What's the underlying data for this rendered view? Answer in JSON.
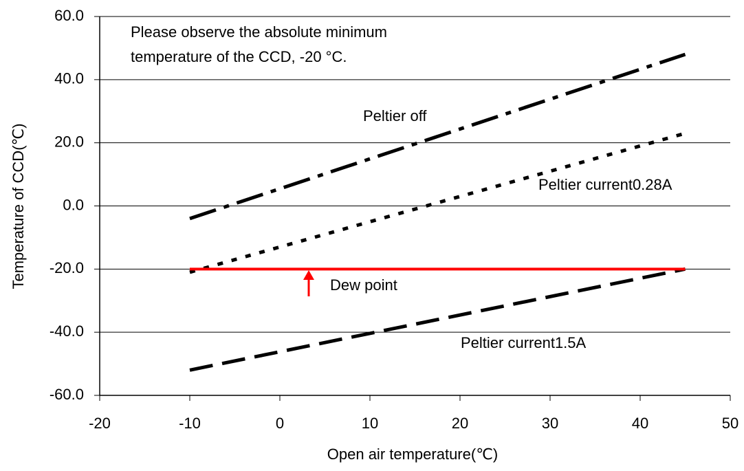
{
  "chart_data": {
    "type": "line",
    "xlabel": "Open air temperature(℃)",
    "ylabel": "Temperature of CCD(℃)",
    "annotations": [
      "Please observe the absolute minimum",
      "temperature of the CCD, -20 °C.",
      "Peltier off",
      "Peltier current0.28A",
      "Dew point",
      "Peltier current1.5A"
    ],
    "x": [
      -10,
      45
    ],
    "series": [
      {
        "name": "Peltier off",
        "color": "#000000",
        "dash": "dashdot",
        "values": [
          -4,
          48
        ]
      },
      {
        "name": "Peltier current0.28A",
        "color": "#000000",
        "dash": "dotted",
        "values": [
          -21,
          23
        ]
      },
      {
        "name": "Peltier current1.5A",
        "color": "#000000",
        "dash": "dashed",
        "values": [
          -52,
          -20
        ]
      },
      {
        "name": "Dew point",
        "color": "#ff0000",
        "dash": "solid",
        "values": [
          -20,
          -20
        ]
      }
    ],
    "xlim": [
      -20,
      50
    ],
    "xticks": [
      -20,
      -10,
      0,
      10,
      20,
      30,
      40,
      50
    ],
    "ylim": [
      -60,
      60
    ],
    "yticks": [
      {
        "value": -60,
        "label": "-60.0"
      },
      {
        "value": -40,
        "label": "-40.0"
      },
      {
        "value": -20,
        "label": "-20.0"
      },
      {
        "value": 0,
        "label": "0.0"
      },
      {
        "value": 20,
        "label": "20.0"
      },
      {
        "value": 40,
        "label": "40.0"
      },
      {
        "value": 60,
        "label": "60.0"
      }
    ],
    "grid": true
  }
}
